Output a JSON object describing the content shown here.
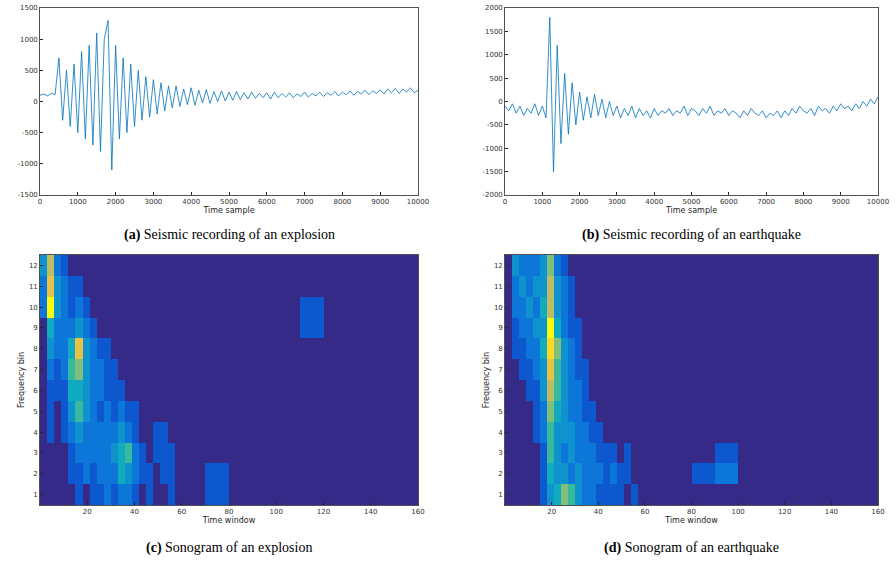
{
  "chart_data": [
    {
      "type": "line",
      "panel": "(a)",
      "title": "Seismic recording of an explosion",
      "xlabel": "Time sample",
      "color": "#0072bd",
      "grid": false,
      "xlim": [
        0,
        10000
      ],
      "xticks": [
        0,
        1000,
        2000,
        3000,
        4000,
        5000,
        6000,
        7000,
        8000,
        9000,
        10000
      ],
      "ylim": [
        -1500,
        1500
      ],
      "yticks": [
        -1500,
        -1000,
        -500,
        0,
        500,
        1000,
        1500
      ],
      "x": [
        0,
        100,
        200,
        300,
        400,
        500,
        600,
        700,
        800,
        900,
        1000,
        1100,
        1200,
        1300,
        1400,
        1500,
        1600,
        1700,
        1800,
        1900,
        2000,
        2100,
        2200,
        2300,
        2400,
        2500,
        2600,
        2700,
        2800,
        2900,
        3000,
        3100,
        3200,
        3300,
        3400,
        3500,
        3600,
        3700,
        3800,
        3900,
        4000,
        4100,
        4200,
        4300,
        4400,
        4500,
        4600,
        4700,
        4800,
        4900,
        5000,
        5100,
        5200,
        5300,
        5400,
        5500,
        5600,
        5700,
        5800,
        5900,
        6000,
        6100,
        6200,
        6300,
        6400,
        6500,
        6600,
        6700,
        6800,
        6900,
        7000,
        7100,
        7200,
        7300,
        7400,
        7500,
        7600,
        7700,
        7800,
        7900,
        8000,
        8100,
        8200,
        8300,
        8400,
        8500,
        8600,
        8700,
        8800,
        8900,
        9000,
        9100,
        9200,
        9300,
        9400,
        9500,
        9600,
        9700,
        9800,
        9900,
        10000
      ],
      "values": [
        100,
        120,
        90,
        130,
        110,
        700,
        -300,
        500,
        -400,
        600,
        -500,
        800,
        -600,
        900,
        -700,
        1100,
        -800,
        1000,
        1300,
        -1100,
        900,
        -600,
        700,
        -500,
        600,
        -400,
        500,
        -300,
        400,
        -250,
        350,
        -200,
        300,
        -150,
        250,
        -100,
        250,
        -80,
        200,
        -50,
        220,
        -60,
        180,
        -20,
        190,
        -30,
        160,
        0,
        170,
        10,
        150,
        20,
        160,
        30,
        140,
        40,
        150,
        50,
        130,
        60,
        140,
        40,
        150,
        60,
        130,
        70,
        140,
        60,
        120,
        80,
        150,
        70,
        130,
        90,
        150,
        80,
        140,
        100,
        160,
        90,
        150,
        110,
        170,
        100,
        160,
        120,
        180,
        110,
        170,
        130,
        190,
        120,
        200,
        140,
        210,
        130,
        200,
        150,
        220,
        140,
        180
      ]
    },
    {
      "type": "line",
      "panel": "(b)",
      "title": "Seismic recording of an earthquake",
      "xlabel": "Time sample",
      "color": "#0072bd",
      "grid": false,
      "xlim": [
        0,
        10000
      ],
      "xticks": [
        0,
        1000,
        2000,
        3000,
        4000,
        5000,
        6000,
        7000,
        8000,
        9000,
        10000
      ],
      "ylim": [
        -2000,
        2000
      ],
      "yticks": [
        -2000,
        -1500,
        -1000,
        -500,
        0,
        500,
        1000,
        1500,
        2000
      ],
      "x": [
        0,
        100,
        200,
        300,
        400,
        500,
        600,
        700,
        800,
        900,
        1000,
        1100,
        1200,
        1300,
        1400,
        1500,
        1600,
        1700,
        1800,
        1900,
        2000,
        2100,
        2200,
        2300,
        2400,
        2500,
        2600,
        2700,
        2800,
        2900,
        3000,
        3100,
        3200,
        3300,
        3400,
        3500,
        3600,
        3700,
        3800,
        3900,
        4000,
        4100,
        4200,
        4300,
        4400,
        4500,
        4600,
        4700,
        4800,
        4900,
        5000,
        5100,
        5200,
        5300,
        5400,
        5500,
        5600,
        5700,
        5800,
        5900,
        6000,
        6100,
        6200,
        6300,
        6400,
        6500,
        6600,
        6700,
        6800,
        6900,
        7000,
        7100,
        7200,
        7300,
        7400,
        7500,
        7600,
        7700,
        7800,
        7900,
        8000,
        8100,
        8200,
        8300,
        8400,
        8500,
        8600,
        8700,
        8800,
        8900,
        9000,
        9100,
        9200,
        9300,
        9400,
        9500,
        9600,
        9700,
        9800,
        9900,
        10000
      ],
      "values": [
        -100,
        -200,
        -50,
        -250,
        -100,
        -300,
        -150,
        -250,
        -50,
        -300,
        -100,
        -350,
        1800,
        -1500,
        1200,
        -900,
        600,
        -700,
        400,
        -500,
        200,
        -400,
        100,
        -350,
        150,
        -300,
        50,
        -350,
        0,
        -300,
        -100,
        -350,
        -150,
        -300,
        -100,
        -350,
        -150,
        -300,
        -200,
        -350,
        -150,
        -300,
        -200,
        -250,
        -150,
        -300,
        -200,
        -250,
        -100,
        -300,
        -150,
        -200,
        -300,
        -150,
        -250,
        -100,
        -300,
        -200,
        -250,
        -150,
        -300,
        -200,
        -250,
        -350,
        -200,
        -300,
        -150,
        -250,
        -300,
        -200,
        -350,
        -250,
        -300,
        -200,
        -350,
        -200,
        -300,
        -150,
        -250,
        -100,
        -200,
        -250,
        -150,
        -300,
        -100,
        -200,
        -150,
        -250,
        -100,
        -200,
        -50,
        -150,
        -100,
        -200,
        -50,
        -150,
        0,
        -100,
        50,
        -50,
        100
      ]
    },
    {
      "type": "heatmap",
      "panel": "(c)",
      "title": "Sonogram of an explosion",
      "xlabel": "Time window",
      "ylabel": "Frequency bin",
      "grid": false,
      "xlim": [
        0,
        160
      ],
      "xticks": [
        20,
        40,
        60,
        80,
        100,
        120,
        140,
        160
      ],
      "ylim": [
        0.5,
        12.5
      ],
      "yticks": [
        1,
        2,
        3,
        4,
        5,
        6,
        7,
        8,
        9,
        10,
        11,
        12
      ],
      "zlim": [
        0,
        10
      ],
      "x": [
        1.5,
        4.5,
        7.5,
        10.5,
        13.5,
        16.5,
        19.5,
        22.5,
        25.5,
        28.5,
        31.5,
        34.5,
        37.5,
        40.5,
        43.5,
        46.5,
        49.5,
        52.5,
        55.5,
        58.5,
        65,
        75,
        85,
        95,
        105,
        115,
        125,
        135,
        145,
        155
      ],
      "y": [
        1,
        2,
        3,
        4,
        5,
        6,
        7,
        8,
        9,
        10,
        11,
        12
      ],
      "z": [
        [
          0,
          0,
          0,
          0,
          0,
          1,
          0,
          1,
          1,
          2,
          1,
          2,
          2,
          1,
          0,
          1,
          0,
          0,
          1,
          0,
          0,
          1,
          0,
          0,
          0,
          0,
          0,
          0,
          0,
          0
        ],
        [
          0,
          0,
          0,
          0,
          1,
          1,
          2,
          1,
          2,
          2,
          2,
          4,
          3,
          2,
          1,
          1,
          0,
          1,
          1,
          0,
          0,
          1,
          0,
          0,
          0,
          0,
          0,
          0,
          0,
          0
        ],
        [
          0,
          0,
          0,
          0,
          1,
          2,
          2,
          2,
          2,
          2,
          3,
          4,
          5,
          2,
          1,
          0,
          1,
          1,
          1,
          0,
          0,
          0,
          0,
          0,
          0,
          0,
          0,
          0,
          0,
          0
        ],
        [
          0,
          1,
          0,
          1,
          2,
          3,
          2,
          2,
          2,
          2,
          2,
          3,
          2,
          1,
          0,
          0,
          1,
          1,
          0,
          0,
          0,
          0,
          0,
          0,
          0,
          0,
          0,
          0,
          0,
          0
        ],
        [
          0,
          1,
          0,
          1,
          3,
          5,
          3,
          2,
          1,
          2,
          1,
          2,
          1,
          1,
          0,
          0,
          0,
          0,
          0,
          0,
          0,
          0,
          0,
          0,
          0,
          0,
          0,
          0,
          0,
          0
        ],
        [
          0,
          1,
          1,
          1,
          4,
          4,
          3,
          2,
          2,
          1,
          1,
          1,
          0,
          0,
          0,
          0,
          0,
          0,
          0,
          0,
          0,
          0,
          0,
          0,
          0,
          0,
          0,
          0,
          0,
          0
        ],
        [
          0,
          2,
          1,
          2,
          5,
          6,
          3,
          2,
          2,
          1,
          1,
          0,
          0,
          0,
          0,
          0,
          0,
          0,
          0,
          0,
          0,
          0,
          0,
          0,
          0,
          0,
          0,
          0,
          0,
          0
        ],
        [
          0,
          3,
          2,
          2,
          4,
          8,
          3,
          2,
          1,
          1,
          0,
          0,
          0,
          0,
          0,
          0,
          0,
          0,
          0,
          0,
          0,
          0,
          0,
          0,
          0,
          0,
          0,
          0,
          0,
          0
        ],
        [
          0,
          4,
          2,
          2,
          2,
          3,
          2,
          1,
          0,
          0,
          0,
          0,
          0,
          0,
          0,
          0,
          0,
          0,
          0,
          0,
          0,
          0,
          0,
          0,
          0,
          1,
          0,
          0,
          0,
          0
        ],
        [
          2,
          10,
          3,
          2,
          1,
          2,
          1,
          0,
          0,
          0,
          0,
          0,
          0,
          0,
          0,
          0,
          0,
          0,
          0,
          0,
          0,
          0,
          0,
          0,
          0,
          1,
          0,
          0,
          0,
          0
        ],
        [
          2,
          8,
          3,
          2,
          1,
          1,
          0,
          0,
          0,
          0,
          0,
          0,
          0,
          0,
          0,
          0,
          0,
          0,
          0,
          0,
          0,
          0,
          0,
          0,
          0,
          0,
          0,
          0,
          0,
          0
        ],
        [
          3,
          7,
          2,
          1,
          0,
          0,
          0,
          0,
          0,
          0,
          0,
          0,
          0,
          0,
          0,
          0,
          0,
          0,
          0,
          0,
          0,
          0,
          0,
          0,
          0,
          0,
          0,
          0,
          0,
          0
        ]
      ]
    },
    {
      "type": "heatmap",
      "panel": "(d)",
      "title": "Sonogram of an earthquake",
      "xlabel": "Time window",
      "ylabel": "Frequency bin",
      "grid": false,
      "xlim": [
        0,
        160
      ],
      "xticks": [
        20,
        40,
        60,
        80,
        100,
        120,
        140,
        160
      ],
      "ylim": [
        0.5,
        12.5
      ],
      "yticks": [
        1,
        2,
        3,
        4,
        5,
        6,
        7,
        8,
        9,
        10,
        11,
        12
      ],
      "zlim": [
        0,
        10
      ],
      "x": [
        1.5,
        4.5,
        7.5,
        10.5,
        13.5,
        16.5,
        19.5,
        22.5,
        25.5,
        28.5,
        31.5,
        34.5,
        37.5,
        40.5,
        43.5,
        46.5,
        49.5,
        52.5,
        55.5,
        58.5,
        65,
        75,
        85,
        95,
        105,
        115,
        125,
        135,
        145,
        155
      ],
      "y": [
        1,
        2,
        3,
        4,
        5,
        6,
        7,
        8,
        9,
        10,
        11,
        12
      ],
      "z": [
        [
          0,
          0,
          0,
          0,
          0,
          1,
          3,
          4,
          6,
          5,
          3,
          2,
          2,
          1,
          1,
          1,
          1,
          0,
          1,
          0,
          0,
          0,
          0,
          0,
          0,
          0,
          0,
          0,
          0,
          0
        ],
        [
          0,
          0,
          0,
          0,
          0,
          1,
          4,
          3,
          3,
          2,
          3,
          2,
          2,
          2,
          1,
          2,
          1,
          1,
          0,
          0,
          0,
          0,
          1,
          2,
          0,
          0,
          0,
          0,
          0,
          0
        ],
        [
          0,
          0,
          0,
          0,
          0,
          1,
          5,
          3,
          2,
          3,
          2,
          2,
          2,
          1,
          1,
          1,
          0,
          1,
          0,
          0,
          0,
          0,
          0,
          1,
          0,
          0,
          0,
          0,
          0,
          0
        ],
        [
          0,
          0,
          0,
          0,
          1,
          2,
          5,
          3,
          3,
          3,
          2,
          2,
          1,
          1,
          0,
          0,
          0,
          0,
          0,
          0,
          0,
          0,
          0,
          0,
          0,
          0,
          0,
          0,
          0,
          0
        ],
        [
          0,
          0,
          0,
          0,
          1,
          2,
          6,
          4,
          3,
          2,
          2,
          1,
          1,
          0,
          0,
          0,
          0,
          0,
          0,
          0,
          0,
          0,
          0,
          0,
          0,
          0,
          0,
          0,
          0,
          0
        ],
        [
          0,
          0,
          0,
          1,
          1,
          3,
          7,
          5,
          3,
          2,
          2,
          1,
          0,
          0,
          0,
          0,
          0,
          0,
          0,
          0,
          0,
          0,
          0,
          0,
          0,
          0,
          0,
          0,
          0,
          0
        ],
        [
          0,
          0,
          1,
          1,
          2,
          3,
          8,
          5,
          3,
          2,
          1,
          1,
          0,
          0,
          0,
          0,
          0,
          0,
          0,
          0,
          0,
          0,
          0,
          0,
          0,
          0,
          0,
          0,
          0,
          0
        ],
        [
          0,
          1,
          1,
          2,
          2,
          4,
          9,
          6,
          3,
          2,
          1,
          0,
          0,
          0,
          0,
          0,
          0,
          0,
          0,
          0,
          0,
          0,
          0,
          0,
          0,
          0,
          0,
          0,
          0,
          0
        ],
        [
          0,
          1,
          2,
          2,
          3,
          3,
          10,
          4,
          2,
          1,
          1,
          0,
          0,
          0,
          0,
          0,
          0,
          0,
          0,
          0,
          0,
          0,
          0,
          0,
          0,
          0,
          0,
          0,
          0,
          0
        ],
        [
          0,
          2,
          2,
          3,
          2,
          4,
          7,
          3,
          2,
          1,
          0,
          0,
          0,
          0,
          0,
          0,
          0,
          0,
          0,
          0,
          0,
          0,
          0,
          0,
          0,
          0,
          0,
          0,
          0,
          0
        ],
        [
          0,
          2,
          3,
          2,
          3,
          3,
          7,
          3,
          2,
          1,
          0,
          0,
          0,
          0,
          0,
          0,
          0,
          0,
          0,
          0,
          0,
          0,
          0,
          0,
          0,
          0,
          0,
          0,
          0,
          0
        ],
        [
          0,
          3,
          2,
          2,
          2,
          3,
          6,
          2,
          1,
          0,
          0,
          0,
          0,
          0,
          0,
          0,
          0,
          0,
          0,
          0,
          0,
          0,
          0,
          0,
          0,
          0,
          0,
          0,
          0,
          0
        ]
      ]
    }
  ]
}
